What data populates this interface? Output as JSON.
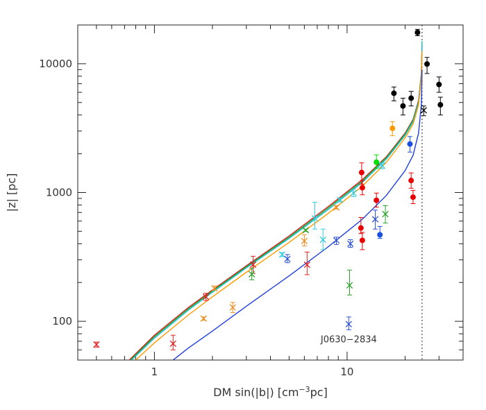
{
  "chart_data": {
    "type": "scatter",
    "xlabel": {
      "pre": "DM sin(|b|) [cm",
      "sup": "−3",
      "post": "pc]"
    },
    "ylabel": "|z| [pc]",
    "x_scale": "log",
    "y_scale": "log",
    "xlim": [
      0.4,
      40
    ],
    "ylim": [
      50,
      20000
    ],
    "x_ticks": [
      {
        "value": 1,
        "label": "1"
      },
      {
        "value": 10,
        "label": "10"
      }
    ],
    "y_ticks": [
      {
        "value": 100,
        "label": "100"
      },
      {
        "value": 1000,
        "label": "1000"
      },
      {
        "value": 10000,
        "label": "10000"
      }
    ],
    "vline_x": 24.5,
    "annotation": {
      "text": "J0630−2834",
      "x": 10.2,
      "y": 72
    },
    "model_curves": [
      {
        "color": "#d62728",
        "points": [
          [
            0.74,
            50
          ],
          [
            1,
            78
          ],
          [
            1.5,
            128
          ],
          [
            2,
            175
          ],
          [
            3,
            270
          ],
          [
            5,
            460
          ],
          [
            8,
            780
          ],
          [
            12,
            1260
          ],
          [
            16,
            1900
          ],
          [
            20,
            2900
          ],
          [
            22,
            3700
          ],
          [
            23.5,
            5200
          ],
          [
            24.3,
            8500
          ],
          [
            24.5,
            14000
          ]
        ]
      },
      {
        "color": "#2ca02c",
        "points": [
          [
            0.75,
            50
          ],
          [
            1,
            76
          ],
          [
            1.5,
            125
          ],
          [
            2,
            172
          ],
          [
            3,
            265
          ],
          [
            5,
            450
          ],
          [
            8,
            760
          ],
          [
            12,
            1230
          ],
          [
            16,
            1870
          ],
          [
            20,
            2850
          ],
          [
            22,
            3650
          ],
          [
            23.5,
            5100
          ],
          [
            24.3,
            8300
          ],
          [
            24.5,
            13500
          ]
        ]
      },
      {
        "color": "#17becf",
        "points": [
          [
            0.76,
            50
          ],
          [
            1,
            74
          ],
          [
            1.5,
            122
          ],
          [
            2,
            168
          ],
          [
            3,
            260
          ],
          [
            5,
            440
          ],
          [
            8,
            740
          ],
          [
            12,
            1200
          ],
          [
            16,
            1820
          ],
          [
            20,
            2780
          ],
          [
            22,
            3550
          ],
          [
            23.5,
            5000
          ],
          [
            24.3,
            8200
          ],
          [
            24.5,
            15000
          ]
        ]
      },
      {
        "color": "#ff9900",
        "points": [
          [
            0.8,
            50
          ],
          [
            1,
            68
          ],
          [
            1.5,
            112
          ],
          [
            2,
            155
          ],
          [
            3,
            240
          ],
          [
            5,
            410
          ],
          [
            8,
            690
          ],
          [
            12,
            1120
          ],
          [
            16,
            1720
          ],
          [
            20,
            2650
          ],
          [
            22,
            3400
          ],
          [
            23.5,
            4800
          ],
          [
            24.3,
            7800
          ],
          [
            24.5,
            12500
          ]
        ]
      },
      {
        "color": "#1f3fdd",
        "points": [
          [
            1.25,
            50
          ],
          [
            1.5,
            62
          ],
          [
            2,
            84
          ],
          [
            3,
            131
          ],
          [
            5,
            225
          ],
          [
            8,
            380
          ],
          [
            12,
            620
          ],
          [
            16,
            950
          ],
          [
            20,
            1480
          ],
          [
            22,
            1950
          ],
          [
            23.5,
            2900
          ],
          [
            24.3,
            4800
          ],
          [
            24.5,
            9000
          ]
        ]
      }
    ],
    "series": [
      {
        "color": "#e02020",
        "marker": "x",
        "points": [
          [
            0.5,
            66,
            63,
            69
          ],
          [
            1.25,
            67,
            60,
            78
          ],
          [
            1.85,
            155,
            145,
            165
          ],
          [
            3.25,
            275,
            235,
            320
          ],
          [
            6.2,
            275,
            230,
            345
          ]
        ]
      },
      {
        "color": "#ee8e22",
        "marker": "x",
        "points": [
          [
            1.8,
            105,
            102,
            108
          ],
          [
            2.05,
            180,
            175,
            188
          ],
          [
            2.55,
            128,
            117,
            140
          ],
          [
            6.0,
            420,
            385,
            470
          ],
          [
            8.8,
            765,
            745,
            790
          ]
        ]
      },
      {
        "color": "#2aa02a",
        "marker": "x",
        "points": [
          [
            3.2,
            232,
            210,
            258
          ],
          [
            6.1,
            510,
            500,
            520
          ],
          [
            10.3,
            190,
            160,
            250
          ],
          [
            15.8,
            680,
            580,
            790
          ]
        ]
      },
      {
        "color": "#33ccdd",
        "marker": "x",
        "points": [
          [
            4.6,
            330,
            318,
            342
          ],
          [
            6.8,
            630,
            520,
            840
          ],
          [
            7.5,
            430,
            360,
            520
          ],
          [
            9.2,
            875,
            845,
            905
          ],
          [
            10.8,
            990,
            930,
            1060
          ],
          [
            15.2,
            1620,
            1530,
            1700
          ]
        ]
      },
      {
        "color": "#2c4fd6",
        "marker": "x",
        "points": [
          [
            4.9,
            305,
            285,
            330
          ],
          [
            8.8,
            425,
            395,
            450
          ],
          [
            10.4,
            400,
            375,
            430
          ],
          [
            10.2,
            95,
            86,
            108
          ],
          [
            14.0,
            620,
            520,
            730
          ]
        ]
      },
      {
        "color": "#e80000",
        "marker": "dot",
        "points": [
          [
            11.8,
            530,
            480,
            640
          ],
          [
            11.9,
            1430,
            1160,
            1700
          ],
          [
            12.0,
            1090,
            960,
            1240
          ],
          [
            12.0,
            425,
            360,
            490
          ],
          [
            14.2,
            870,
            770,
            990
          ],
          [
            21.5,
            1240,
            1080,
            1420
          ],
          [
            22.0,
            920,
            820,
            1040
          ]
        ]
      },
      {
        "color": "#ff9900",
        "marker": "dot",
        "points": [
          [
            17.2,
            3150,
            2760,
            3550
          ]
        ]
      },
      {
        "color": "#00e000",
        "marker": "dot",
        "points": [
          [
            14.2,
            1720,
            1540,
            1960
          ]
        ]
      },
      {
        "color": "#1a4fe0",
        "marker": "dot",
        "points": [
          [
            14.8,
            470,
            440,
            545
          ],
          [
            21.2,
            2380,
            2060,
            2720
          ]
        ]
      },
      {
        "color": "#000000",
        "marker": "dot",
        "points": [
          [
            17.5,
            5900,
            5150,
            6600
          ],
          [
            19.5,
            4700,
            4000,
            5400
          ],
          [
            21.5,
            5400,
            4700,
            6100
          ],
          [
            23.2,
            17500,
            16500,
            18500
          ],
          [
            26.0,
            9950,
            8400,
            11200
          ],
          [
            30.0,
            6900,
            6000,
            7900
          ],
          [
            30.5,
            4800,
            4000,
            5500
          ]
        ]
      },
      {
        "color": "#000000",
        "marker": "x",
        "points": [
          [
            25.0,
            4350,
            3950,
            4700
          ]
        ]
      }
    ]
  }
}
